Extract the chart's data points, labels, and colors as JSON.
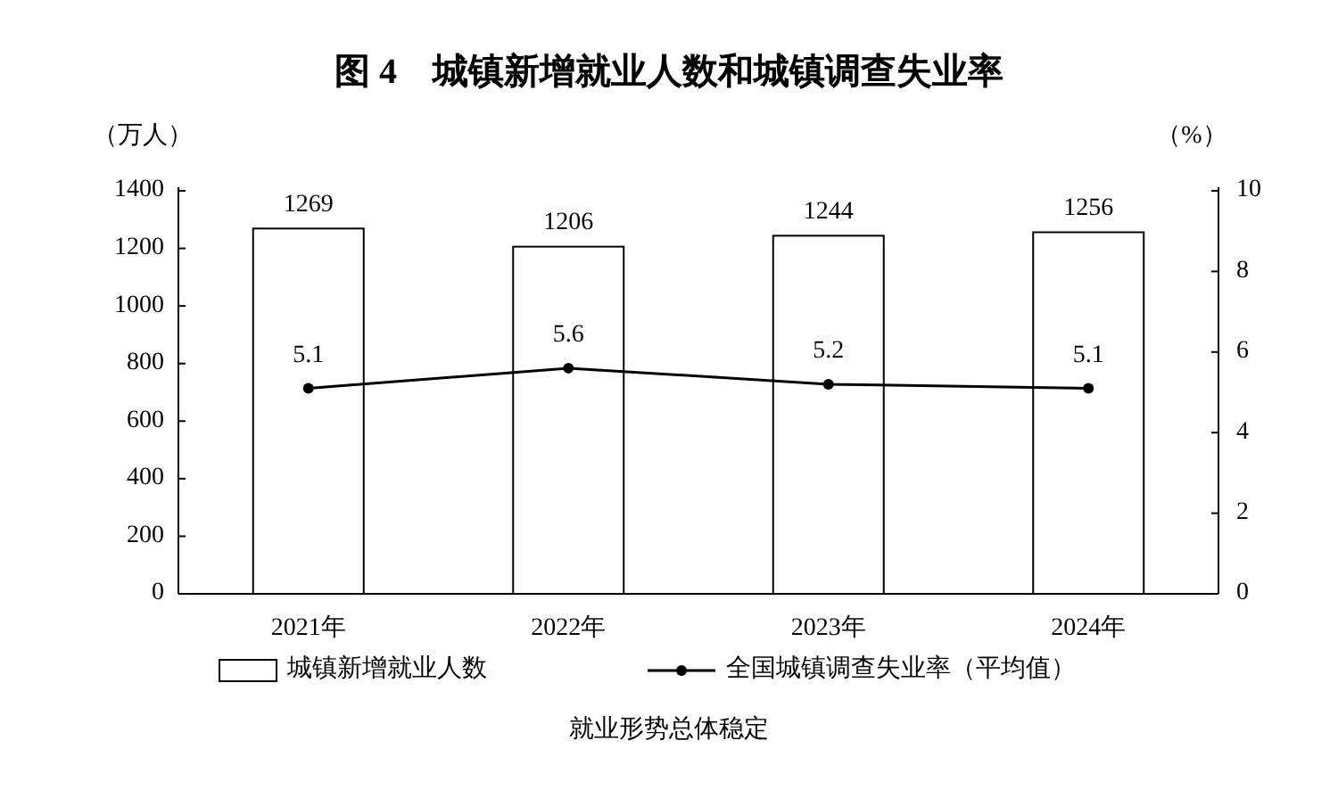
{
  "chart_data": {
    "type": "bar",
    "title": "图 4　城镇新增就业人数和城镇调查失业率",
    "ylabel": "（万人）",
    "y2label": "（%）",
    "categories": [
      "2021年",
      "2022年",
      "2023年",
      "2024年"
    ],
    "series": [
      {
        "name": "城镇新增就业人数",
        "color": "#ffffff",
        "values": [
          1269,
          1206,
          1244,
          1256
        ]
      },
      {
        "name": "全国城镇调查失业率（平均值）",
        "type": "line",
        "axis": "y2",
        "color": "#000000",
        "values": [
          5.1,
          5.6,
          5.2,
          5.1
        ]
      }
    ],
    "marker": "circle",
    "ylim": [
      0,
      1400
    ],
    "yticks": [
      0,
      200,
      400,
      600,
      800,
      1000,
      1200,
      1400
    ],
    "y2lim": [
      0,
      10
    ],
    "y2ticks": [
      0,
      2,
      4,
      6,
      8,
      10
    ],
    "data_labels": true,
    "legend": "bottom",
    "annotations": [
      "就业形势总体稳定"
    ]
  }
}
